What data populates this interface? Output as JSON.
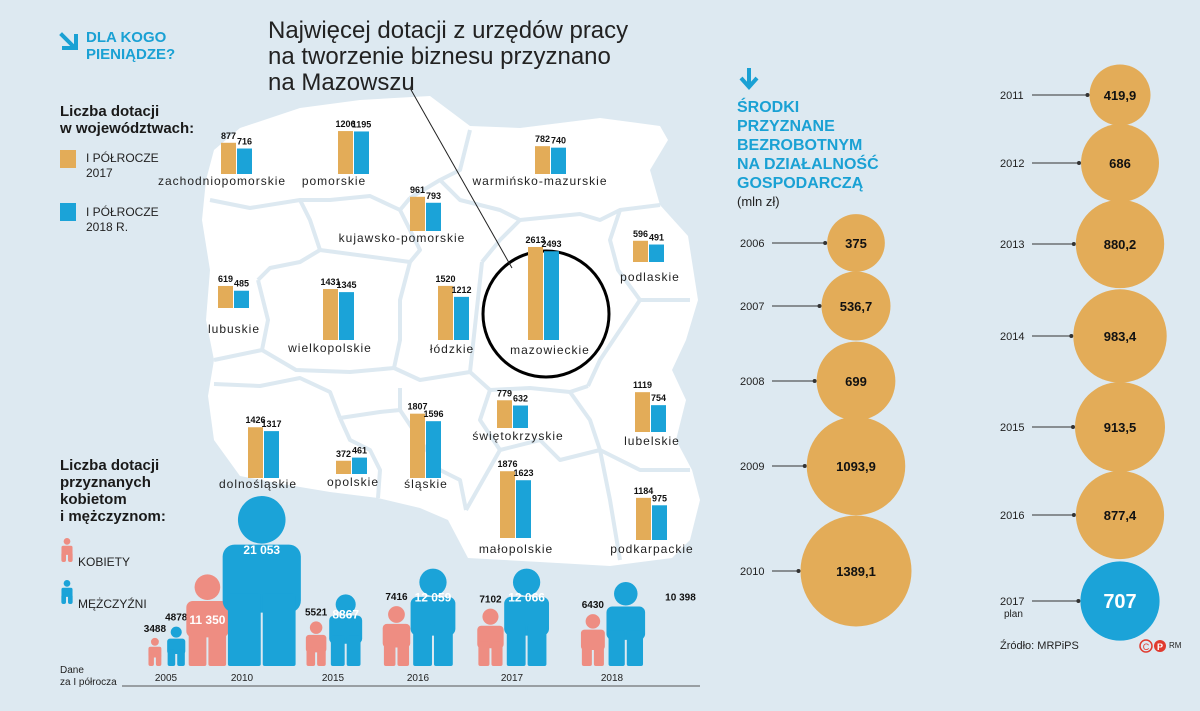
{
  "header": {
    "kicker": "DLA KOGO PIENIĄDZE?",
    "title_lines": [
      "Najwięcej dotacji z urzędów pracy",
      "na tworzenie biznesu przyznano",
      "na Mazowszu"
    ]
  },
  "colors": {
    "orange": "#e3ac58",
    "blue": "#1ba3d8",
    "pink": "#ee8d82",
    "map_land": "#ffffff",
    "background": "#dde9f1"
  },
  "legend_regions": {
    "title_lines": [
      "Liczba dotacji",
      "w województwach:"
    ],
    "items": [
      {
        "label_lines": [
          "I PÓŁROCZE",
          "2017"
        ],
        "color": "#e3ac58"
      },
      {
        "label_lines": [
          "I PÓŁROCZE",
          "2018 R."
        ],
        "color": "#1ba3d8"
      }
    ]
  },
  "legend_gender": {
    "title_lines": [
      "Liczba dotacji",
      "przyznanych",
      "kobietom",
      "i mężczyznom:"
    ],
    "items": [
      {
        "label": "KOBIETY",
        "color": "#ee8d82",
        "icon": "person-icon"
      },
      {
        "label": "MĘŻCZYŹNI",
        "color": "#1ba3d8",
        "icon": "person-icon"
      }
    ]
  },
  "timeline_note_lines": [
    "Dane",
    "za I półrocza"
  ],
  "funds": {
    "title_lines": [
      "ŚRODKI",
      "PRZYZNANE",
      "BEZROBOTNYM",
      "NA DZIAŁALNOŚĆ",
      "GOSPODARCZĄ"
    ],
    "unit": "(mln zł)",
    "plan_label": "plan"
  },
  "source": "Źródło: MRPiPS",
  "copyright": "RM",
  "chart_data": [
    {
      "type": "bar",
      "title": "Liczba dotacji w województwach",
      "series": [
        {
          "name": "I PÓŁROCZE 2017",
          "color": "#e3ac58"
        },
        {
          "name": "I PÓŁROCZE 2018 R.",
          "color": "#1ba3d8"
        }
      ],
      "regions": [
        {
          "name": "zachodniopomorskie",
          "v2017": 877,
          "v2018": 716
        },
        {
          "name": "pomorskie",
          "v2017": 1206,
          "v2018": 1195
        },
        {
          "name": "warmińsko-mazurskie",
          "v2017": 782,
          "v2018": 740
        },
        {
          "name": "kujawsko-pomorskie",
          "v2017": 961,
          "v2018": 793
        },
        {
          "name": "podlaskie",
          "v2017": 596,
          "v2018": 491
        },
        {
          "name": "lubuskie",
          "v2017": 619,
          "v2018": 485
        },
        {
          "name": "wielkopolskie",
          "v2017": 1431,
          "v2018": 1345
        },
        {
          "name": "łódzkie",
          "v2017": 1520,
          "v2018": 1212
        },
        {
          "name": "mazowieckie",
          "v2017": 2613,
          "v2018": 2493
        },
        {
          "name": "dolnośląskie",
          "v2017": 1426,
          "v2018": 1317
        },
        {
          "name": "opolskie",
          "v2017": 372,
          "v2018": 461
        },
        {
          "name": "śląskie",
          "v2017": 1807,
          "v2018": 1596
        },
        {
          "name": "świętokrzyskie",
          "v2017": 779,
          "v2018": 632
        },
        {
          "name": "małopolskie",
          "v2017": 1876,
          "v2018": 1623
        },
        {
          "name": "lubelskie",
          "v2017": 1119,
          "v2018": 754
        },
        {
          "name": "podkarpackie",
          "v2017": 1184,
          "v2018": 975
        }
      ]
    },
    {
      "type": "bar",
      "title": "Liczba dotacji przyznanych kobietom i mężczyznom",
      "categories": [
        "2005",
        "2010",
        "2015",
        "2016",
        "2017",
        "2018"
      ],
      "series": [
        {
          "name": "KOBIETY",
          "values": [
            3488,
            11350,
            5521,
            7416,
            7102,
            6430
          ],
          "labels": [
            "3488",
            "11 350",
            "5521",
            "7416",
            "7102",
            "6430"
          ]
        },
        {
          "name": "MĘŻCZYŹNI",
          "values": [
            4878,
            21053,
            8867,
            12059,
            12066,
            10398
          ],
          "labels": [
            "4878",
            "21 053",
            "8867",
            "12 059",
            "12 066",
            "10 398"
          ]
        }
      ]
    },
    {
      "type": "scatter",
      "title": "ŚRODKI PRZYZNANE BEZROBOTNYM NA DZIAŁALNOŚĆ GOSPODARCZĄ (mln zł)",
      "points": [
        {
          "year": "2006",
          "value": 375,
          "label": "375"
        },
        {
          "year": "2007",
          "value": 536.7,
          "label": "536,7"
        },
        {
          "year": "2008",
          "value": 699,
          "label": "699"
        },
        {
          "year": "2009",
          "value": 1093.9,
          "label": "1093,9"
        },
        {
          "year": "2010",
          "value": 1389.1,
          "label": "1389,1"
        },
        {
          "year": "2011",
          "value": 419.9,
          "label": "419,9"
        },
        {
          "year": "2012",
          "value": 686,
          "label": "686"
        },
        {
          "year": "2013",
          "value": 880.2,
          "label": "880,2"
        },
        {
          "year": "2014",
          "value": 983.4,
          "label": "983,4"
        },
        {
          "year": "2015",
          "value": 913.5,
          "label": "913,5"
        },
        {
          "year": "2016",
          "value": 877.4,
          "label": "877,4"
        },
        {
          "year": "2017",
          "value": 707,
          "label": "707",
          "plan": true
        }
      ]
    }
  ]
}
